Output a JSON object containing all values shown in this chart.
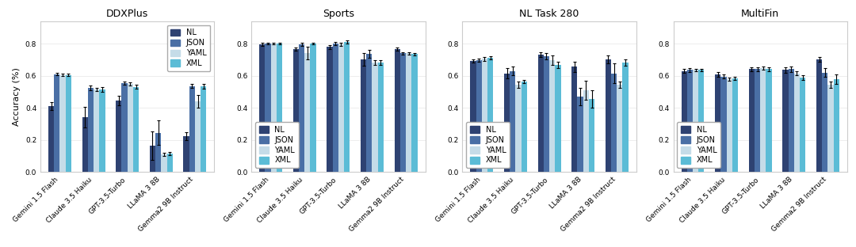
{
  "charts": [
    {
      "title": "DDXPlus",
      "models": [
        "Gemini 1.5 Flash",
        "Claude 3.5 Haiku",
        "GPT-3.5-Turbo",
        "LLaMA 3 8B",
        "Gemma2 9B Instruct"
      ],
      "NL": [
        0.41,
        0.34,
        0.445,
        0.165,
        0.225
      ],
      "JSON": [
        0.61,
        0.525,
        0.555,
        0.245,
        0.535
      ],
      "YAML": [
        0.605,
        0.515,
        0.55,
        0.11,
        0.44
      ],
      "XML": [
        0.605,
        0.515,
        0.53,
        0.115,
        0.535
      ],
      "NL_err": [
        0.025,
        0.065,
        0.03,
        0.09,
        0.025
      ],
      "JSON_err": [
        0.008,
        0.015,
        0.01,
        0.075,
        0.012
      ],
      "YAML_err": [
        0.008,
        0.01,
        0.01,
        0.01,
        0.04
      ],
      "XML_err": [
        0.008,
        0.015,
        0.012,
        0.01,
        0.015
      ],
      "show_ylabel": true,
      "legend_loc": "upper right",
      "ylim": [
        0.0,
        0.94
      ]
    },
    {
      "title": "Sports",
      "models": [
        "Gemini 1.5 Flash",
        "Claude 3.5 Haiku",
        "GPT-3.5-Turbo",
        "LLaMA 3 8B",
        "Gemma2 9B Instruct"
      ],
      "NL": [
        0.795,
        0.765,
        0.78,
        0.7,
        0.765
      ],
      "JSON": [
        0.8,
        0.795,
        0.8,
        0.735,
        0.74
      ],
      "YAML": [
        0.8,
        0.74,
        0.795,
        0.68,
        0.74
      ],
      "XML": [
        0.8,
        0.8,
        0.81,
        0.68,
        0.735
      ],
      "NL_err": [
        0.008,
        0.01,
        0.012,
        0.04,
        0.01
      ],
      "JSON_err": [
        0.005,
        0.008,
        0.008,
        0.025,
        0.008
      ],
      "YAML_err": [
        0.005,
        0.04,
        0.01,
        0.015,
        0.008
      ],
      "XML_err": [
        0.005,
        0.005,
        0.01,
        0.015,
        0.008
      ],
      "show_ylabel": false,
      "legend_loc": "lower left",
      "ylim": [
        0.0,
        0.94
      ]
    },
    {
      "title": "NL Task 280",
      "models": [
        "Gemini 1.5 Flash",
        "Claude 3.5 Haiku",
        "GPT-3.5-Turbo",
        "LLaMA 3 8B",
        "Gemma2 9B Instruct"
      ],
      "NL": [
        0.69,
        0.615,
        0.73,
        0.655,
        0.7
      ],
      "JSON": [
        0.695,
        0.63,
        0.72,
        0.47,
        0.615
      ],
      "YAML": [
        0.705,
        0.545,
        0.695,
        0.51,
        0.545
      ],
      "XML": [
        0.71,
        0.565,
        0.665,
        0.455,
        0.68
      ],
      "NL_err": [
        0.01,
        0.03,
        0.015,
        0.03,
        0.025
      ],
      "JSON_err": [
        0.01,
        0.025,
        0.02,
        0.055,
        0.06
      ],
      "YAML_err": [
        0.012,
        0.02,
        0.03,
        0.06,
        0.02
      ],
      "XML_err": [
        0.01,
        0.01,
        0.02,
        0.055,
        0.02
      ],
      "show_ylabel": false,
      "legend_loc": "lower left",
      "ylim": [
        0.0,
        0.94
      ]
    },
    {
      "title": "MultiFin",
      "models": [
        "Gemini 1.5 Flash",
        "Claude 3.5 Haiku",
        "GPT-3.5-Turbo",
        "LLaMA 3 8B",
        "Gemma2 9B Instruct"
      ],
      "NL": [
        0.63,
        0.61,
        0.64,
        0.635,
        0.7
      ],
      "JSON": [
        0.635,
        0.595,
        0.64,
        0.64,
        0.62
      ],
      "YAML": [
        0.635,
        0.58,
        0.645,
        0.615,
        0.545
      ],
      "XML": [
        0.635,
        0.585,
        0.64,
        0.59,
        0.58
      ],
      "NL_err": [
        0.01,
        0.015,
        0.012,
        0.015,
        0.015
      ],
      "JSON_err": [
        0.01,
        0.012,
        0.01,
        0.015,
        0.025
      ],
      "YAML_err": [
        0.008,
        0.01,
        0.01,
        0.012,
        0.02
      ],
      "XML_err": [
        0.008,
        0.01,
        0.01,
        0.015,
        0.03
      ],
      "show_ylabel": false,
      "legend_loc": "lower left",
      "ylim": [
        0.0,
        0.94
      ]
    }
  ],
  "colors": {
    "NL": "#2e4272",
    "JSON": "#4a6fa5",
    "YAML": "#c5dce8",
    "XML": "#5bbcd6"
  },
  "bar_width": 0.17,
  "fontsize_title": 9,
  "fontsize_tick": 6.5,
  "fontsize_legend": 7,
  "fontsize_ylabel": 8,
  "background_color": "#ffffff"
}
